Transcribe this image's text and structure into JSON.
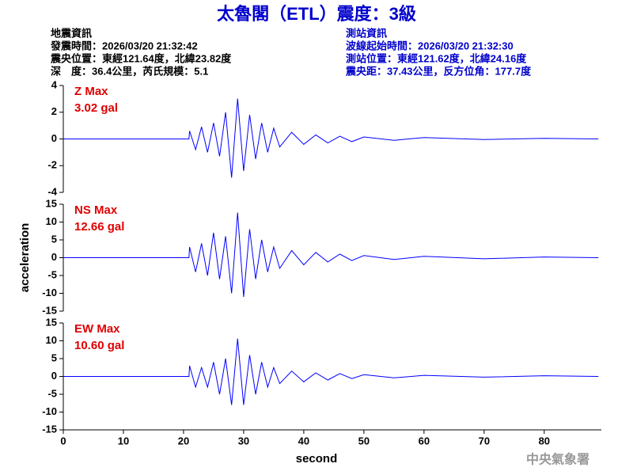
{
  "title": "太魯閣（ETL）震度：3級",
  "event_info": [
    "地震資訊",
    "發震時間：2026/03/20 21:32:42",
    "震央位置：東經121.64度，北緯23.82度",
    "深　度：36.4公里，芮氏規模：5.1"
  ],
  "station_info": [
    "測站資訊",
    "波線起始時間：2026/03/20 21:32:30",
    "測站位置：東經121.62度，北緯24.16度",
    "震央距：37.43公里，反方位角：177.7度"
  ],
  "agency": "中央氣象署",
  "chart_data": [
    {
      "type": "line",
      "annotations": [
        "Z Max",
        "3.02 gal"
      ],
      "color": "#0000ff",
      "x": [
        0,
        20.9,
        21,
        22,
        23,
        24,
        25,
        26,
        27,
        28,
        29,
        30,
        31,
        32,
        33,
        34,
        35,
        36,
        38,
        40,
        42,
        44,
        46,
        48,
        50,
        55,
        60,
        70,
        80,
        89
      ],
      "values": [
        0,
        0,
        0.6,
        -0.8,
        0.9,
        -1.0,
        1.2,
        -1.3,
        2.0,
        -2.9,
        3.02,
        -2.4,
        1.8,
        -1.5,
        1.2,
        -1.0,
        0.8,
        -0.6,
        0.5,
        -0.4,
        0.3,
        -0.3,
        0.2,
        -0.2,
        0.15,
        -0.1,
        0.1,
        -0.05,
        0.05,
        0
      ],
      "xlim": [
        0,
        89.5
      ],
      "ylim": [
        -4,
        4
      ],
      "yticks": [
        -4,
        -2,
        0,
        2,
        4
      ]
    },
    {
      "type": "line",
      "annotations": [
        "NS Max",
        "12.66 gal"
      ],
      "color": "#0000ff",
      "y_label": "acceleration",
      "x": [
        0,
        20.9,
        21,
        22,
        23,
        24,
        25,
        26,
        27,
        28,
        29,
        30,
        31,
        32,
        33,
        34,
        35,
        36,
        38,
        40,
        42,
        44,
        46,
        48,
        50,
        55,
        60,
        70,
        80,
        89
      ],
      "values": [
        0,
        0,
        3,
        -4,
        4,
        -5,
        7,
        -6,
        6,
        -10,
        12.66,
        -11,
        8,
        -6,
        5,
        -4,
        3,
        -3,
        2,
        -2,
        1.5,
        -1.2,
        1,
        -0.8,
        0.6,
        -0.5,
        0.4,
        -0.3,
        0.2,
        0
      ],
      "xlim": [
        0,
        89.5
      ],
      "ylim": [
        -15,
        15
      ],
      "yticks": [
        -15,
        -10,
        -5,
        0,
        5,
        10,
        15
      ]
    },
    {
      "type": "line",
      "annotations": [
        "EW Max",
        "10.60 gal"
      ],
      "color": "#0000ff",
      "x_label": "second",
      "x": [
        0,
        20.9,
        21,
        22,
        23,
        24,
        25,
        26,
        27,
        28,
        29,
        30,
        31,
        32,
        33,
        34,
        35,
        36,
        38,
        40,
        42,
        44,
        46,
        48,
        50,
        55,
        60,
        70,
        80,
        89
      ],
      "values": [
        0,
        0,
        3,
        -3,
        2.5,
        -3,
        4,
        -5,
        5,
        -8,
        10.6,
        -8,
        6,
        -5,
        4,
        -3,
        2.5,
        -2,
        1.5,
        -1.5,
        1,
        -1,
        0.8,
        -0.6,
        0.5,
        -0.4,
        0.3,
        -0.2,
        0.2,
        0
      ],
      "xlim": [
        0,
        89.5
      ],
      "ylim": [
        -15,
        15
      ],
      "yticks": [
        -15,
        -10,
        -5,
        0,
        5,
        10,
        15
      ],
      "xticks": [
        0,
        10,
        20,
        30,
        40,
        50,
        60,
        70,
        80
      ]
    }
  ]
}
